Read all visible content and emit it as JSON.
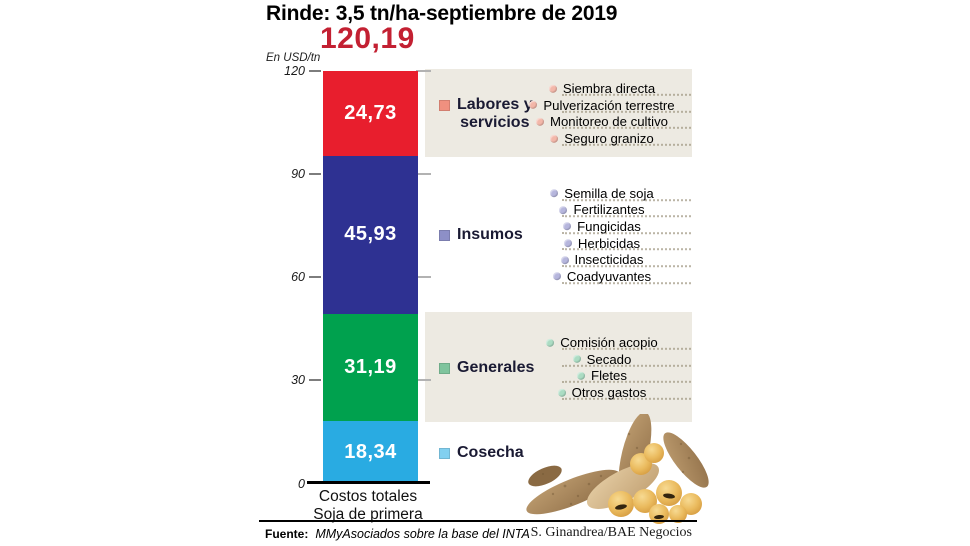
{
  "chart_data": {
    "type": "bar",
    "variant": "stacked-vertical-single-category",
    "title": "Rinde: 3,5 tn/ha-septiembre de 2019",
    "total_value": 120.19,
    "total_label": "120,19",
    "unit_label": "En USD/tn",
    "ylim": [
      0,
      120
    ],
    "grid": false,
    "yticks": [
      {
        "value": 120,
        "label": "120"
      },
      {
        "value": 90,
        "label": "90"
      },
      {
        "value": 60,
        "label": "60"
      },
      {
        "value": 30,
        "label": "30"
      },
      {
        "value": 0,
        "label": "0"
      }
    ],
    "category": {
      "line1": "Costos totales",
      "line2": "Soja de primera"
    },
    "segments": [
      {
        "name": "Labores y servicios",
        "label_lines": [
          "Labores y",
          "servicios"
        ],
        "value": 24.73,
        "value_label": "24,73",
        "bar_color": "#e81e2d",
        "legend_color": "#f0907f",
        "bullet_color": "#f3b7a9",
        "band": true,
        "items": [
          "Siembra directa",
          "Pulverización terrestre",
          "Monitoreo de cultivo",
          "Seguro granizo"
        ]
      },
      {
        "name": "Insumos",
        "label_lines": [
          "Insumos"
        ],
        "value": 45.93,
        "value_label": "45,93",
        "bar_color": "#2e3192",
        "legend_color": "#8d8fc7",
        "bullet_color": "#b6b6dd",
        "band": false,
        "items": [
          "Semilla de soja",
          "Fertilizantes",
          "Fungicidas",
          "Herbicidas",
          "Insecticidas",
          "Coadyuvantes"
        ]
      },
      {
        "name": "Generales",
        "label_lines": [
          "Generales"
        ],
        "value": 31.19,
        "value_label": "31,19",
        "bar_color": "#00a14e",
        "legend_color": "#7fc49d",
        "bullet_color": "#abdcc3",
        "band": true,
        "items": [
          "Comisión acopio",
          "Secado",
          "Fletes",
          "Otros gastos"
        ]
      },
      {
        "name": "Cosecha",
        "label_lines": [
          "Cosecha"
        ],
        "value": 18.34,
        "value_label": "18,34",
        "bar_color": "#29abe2",
        "legend_color": "#82d0f0",
        "bullet_color": "#a5ddf5",
        "band": false,
        "items": []
      }
    ],
    "colors": {
      "band_bg": "#edeae2",
      "total_color": "#c32032",
      "axis": "#000000",
      "tick_left": "#7d7d7d",
      "tick_right": "#b2b2b2"
    },
    "legend_position": "right-of-bar"
  },
  "footer": {
    "source_prefix": "Fuente:",
    "source_text": "MMyAsociados sobre la base del INTA",
    "credit": "S. Ginandrea/BAE Negocios"
  }
}
